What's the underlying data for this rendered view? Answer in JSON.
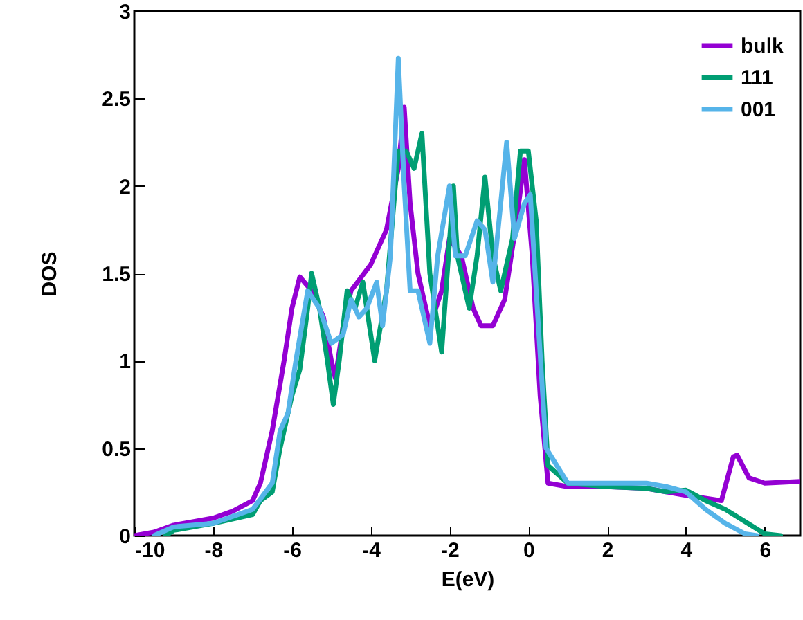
{
  "chart_data": {
    "type": "line",
    "xlabel": "E(eV)",
    "ylabel": "DOS",
    "xlim": [
      -10,
      6.9
    ],
    "xticks": [
      -10,
      -8,
      -6,
      -4,
      -2,
      0,
      2,
      4,
      6
    ],
    "ylim": [
      0,
      3
    ],
    "yticks": [
      0,
      0.5,
      1,
      1.5,
      2,
      2.5,
      3
    ],
    "legend": "top right",
    "grid": false,
    "line_style": "solid",
    "series": [
      {
        "name": "bulk",
        "color": "#9400d3",
        "x": [
          -10,
          -9.5,
          -9,
          -8,
          -7.5,
          -7,
          -6.8,
          -6.5,
          -6.2,
          -6,
          -5.8,
          -5.5,
          -5.2,
          -5,
          -4.9,
          -4.7,
          -4.5,
          -4,
          -3.6,
          -3.3,
          -3.15,
          -3,
          -2.8,
          -2.5,
          -2.2,
          -2,
          -1.7,
          -1.4,
          -1.2,
          -0.9,
          -0.6,
          -0.3,
          -0.1,
          0.1,
          0.3,
          0.5,
          1,
          2,
          3,
          4,
          4.9,
          5.2,
          5.3,
          5.6,
          6,
          6.9
        ],
        "values": [
          0,
          0.02,
          0.06,
          0.1,
          0.14,
          0.2,
          0.3,
          0.6,
          1,
          1.3,
          1.48,
          1.4,
          1.25,
          1,
          0.9,
          1.2,
          1.4,
          1.55,
          1.75,
          2.1,
          2.45,
          1.9,
          1.5,
          1.2,
          1.4,
          1.7,
          1.6,
          1.3,
          1.2,
          1.2,
          1.35,
          1.8,
          2.15,
          1.6,
          0.8,
          0.3,
          0.28,
          0.28,
          0.27,
          0.23,
          0.2,
          0.45,
          0.46,
          0.33,
          0.3,
          0.31
        ]
      },
      {
        "name": "111",
        "color": "#009e73",
        "x": [
          -9.2,
          -9,
          -8,
          -7,
          -6.8,
          -6.5,
          -6.3,
          -6,
          -5.8,
          -5.6,
          -5.5,
          -5.3,
          -5.1,
          -4.95,
          -4.8,
          -4.6,
          -4.4,
          -4.2,
          -3.9,
          -3.6,
          -3.3,
          -3.1,
          -2.9,
          -2.7,
          -2.5,
          -2.2,
          -1.9,
          -1.8,
          -1.5,
          -1.3,
          -1.1,
          -0.9,
          -0.7,
          -0.4,
          -0.2,
          0,
          0.2,
          0.35,
          0.5,
          1,
          2,
          3,
          3.5,
          4,
          4.5,
          5,
          5.5,
          6,
          6.4
        ],
        "values": [
          0,
          0.03,
          0.07,
          0.12,
          0.2,
          0.25,
          0.5,
          0.8,
          0.95,
          1.3,
          1.5,
          1.3,
          1,
          0.75,
          1,
          1.4,
          1.3,
          1.45,
          1,
          1.4,
          2.2,
          2.2,
          2.1,
          2.3,
          1.5,
          1.05,
          2,
          1.6,
          1.3,
          1.6,
          2.05,
          1.6,
          1.4,
          1.7,
          2.2,
          2.2,
          1.8,
          1,
          0.4,
          0.3,
          0.28,
          0.27,
          0.25,
          0.26,
          0.2,
          0.15,
          0.08,
          0.01,
          0
        ]
      },
      {
        "name": "001",
        "color": "#56b4e9",
        "x": [
          -9.5,
          -9,
          -8,
          -7,
          -6.5,
          -6.3,
          -6.1,
          -5.9,
          -5.6,
          -5.3,
          -5,
          -4.7,
          -4.5,
          -4.3,
          -4.1,
          -3.85,
          -3.7,
          -3.5,
          -3.3,
          -3.15,
          -3,
          -2.8,
          -2.5,
          -2.3,
          -2,
          -1.85,
          -1.6,
          -1.3,
          -1.1,
          -0.9,
          -0.7,
          -0.55,
          -0.35,
          -0.1,
          0.05,
          0.2,
          0.45,
          1,
          1.5,
          2,
          3,
          3.5,
          4,
          4.5,
          5,
          5.5,
          5.8
        ],
        "values": [
          0,
          0.05,
          0.07,
          0.15,
          0.3,
          0.6,
          0.7,
          1,
          1.4,
          1.3,
          1.1,
          1.15,
          1.35,
          1.25,
          1.3,
          1.45,
          1.2,
          1.6,
          2.73,
          2,
          1.4,
          1.4,
          1.1,
          1.6,
          2,
          1.6,
          1.6,
          1.8,
          1.75,
          1.45,
          1.9,
          2.25,
          1.7,
          1.9,
          1.95,
          1.4,
          0.5,
          0.3,
          0.3,
          0.3,
          0.3,
          0.28,
          0.25,
          0.15,
          0.07,
          0.01,
          0
        ]
      }
    ]
  }
}
